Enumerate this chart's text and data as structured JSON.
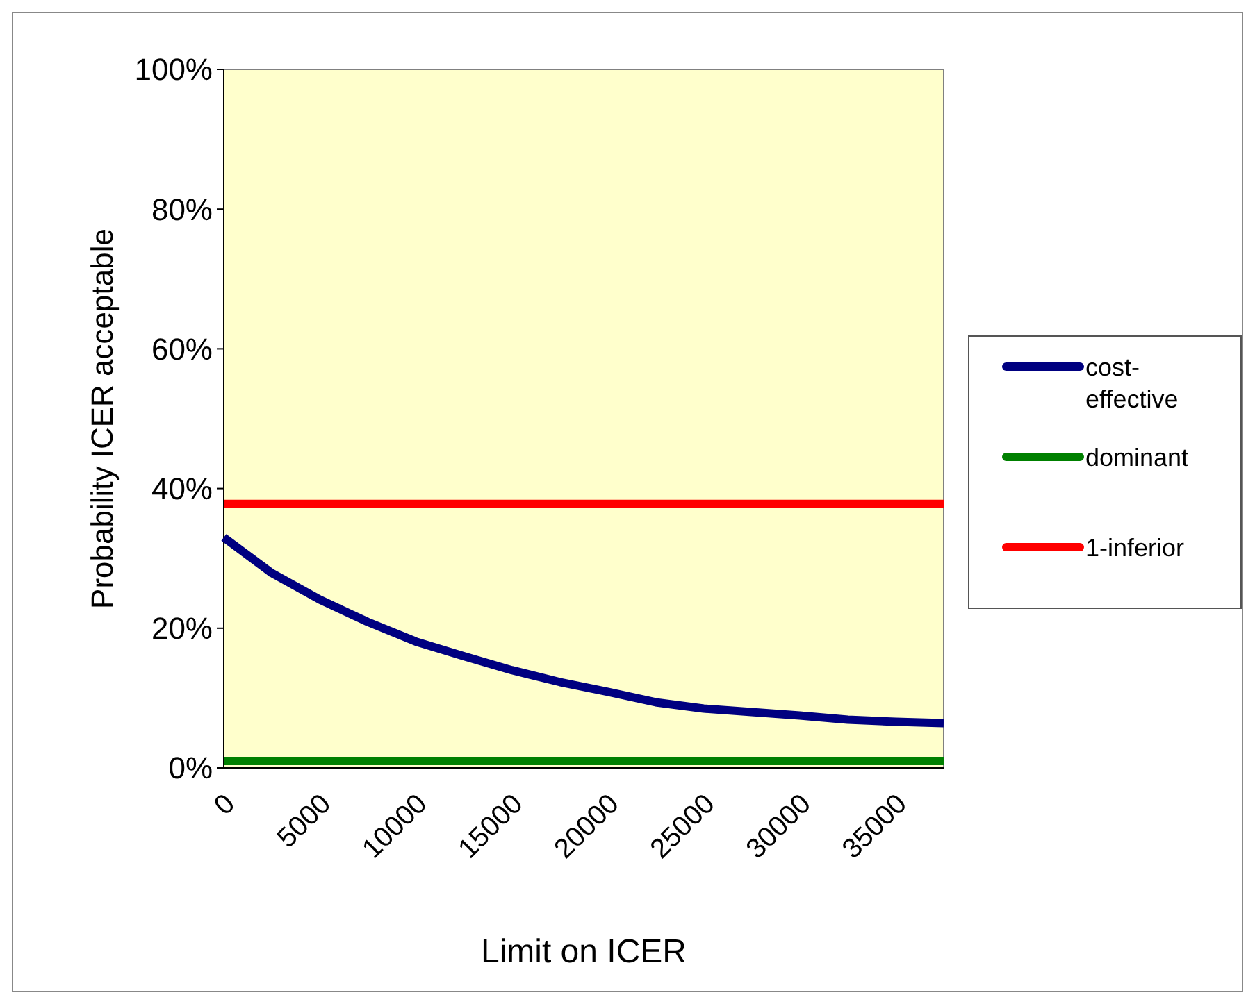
{
  "chart_data": {
    "type": "line",
    "xlabel": "Limit on ICER",
    "ylabel": "Probability ICER acceptable",
    "x": [
      0,
      2500,
      5000,
      7500,
      10000,
      12500,
      15000,
      17500,
      20000,
      22500,
      25000,
      27500,
      30000,
      32500,
      35000,
      37500
    ],
    "xlim": [
      0,
      37500
    ],
    "xticks": [
      0,
      5000,
      10000,
      15000,
      20000,
      25000,
      30000,
      35000
    ],
    "ylim": [
      0,
      100
    ],
    "yticks": [
      {
        "value": 0,
        "label": "0%"
      },
      {
        "value": 20,
        "label": "20%"
      },
      {
        "value": 40,
        "label": "40%"
      },
      {
        "value": 60,
        "label": "60%"
      },
      {
        "value": 80,
        "label": "80%"
      },
      {
        "value": 100,
        "label": "100%"
      }
    ],
    "series": [
      {
        "name": "cost-effective",
        "color": "#000080",
        "values": [
          33,
          27.9,
          24.1,
          20.9,
          18.1,
          16,
          14,
          12.3,
          10.9,
          9.4,
          8.5,
          8,
          7.5,
          6.9,
          6.6,
          6.4
        ]
      },
      {
        "name": "dominant",
        "color": "#008000",
        "values": [
          1,
          1,
          1,
          1,
          1,
          1,
          1,
          1,
          1,
          1,
          1,
          1,
          1,
          1,
          1,
          1
        ]
      },
      {
        "name": "1-inferior",
        "color": "#ff0000",
        "values": [
          37.8,
          37.8,
          37.8,
          37.8,
          37.8,
          37.8,
          37.8,
          37.8,
          37.8,
          37.8,
          37.8,
          37.8,
          37.8,
          37.8,
          37.8,
          37.8
        ]
      }
    ],
    "grid": false,
    "legend": "right",
    "marker": "none",
    "line_style": "solid"
  }
}
